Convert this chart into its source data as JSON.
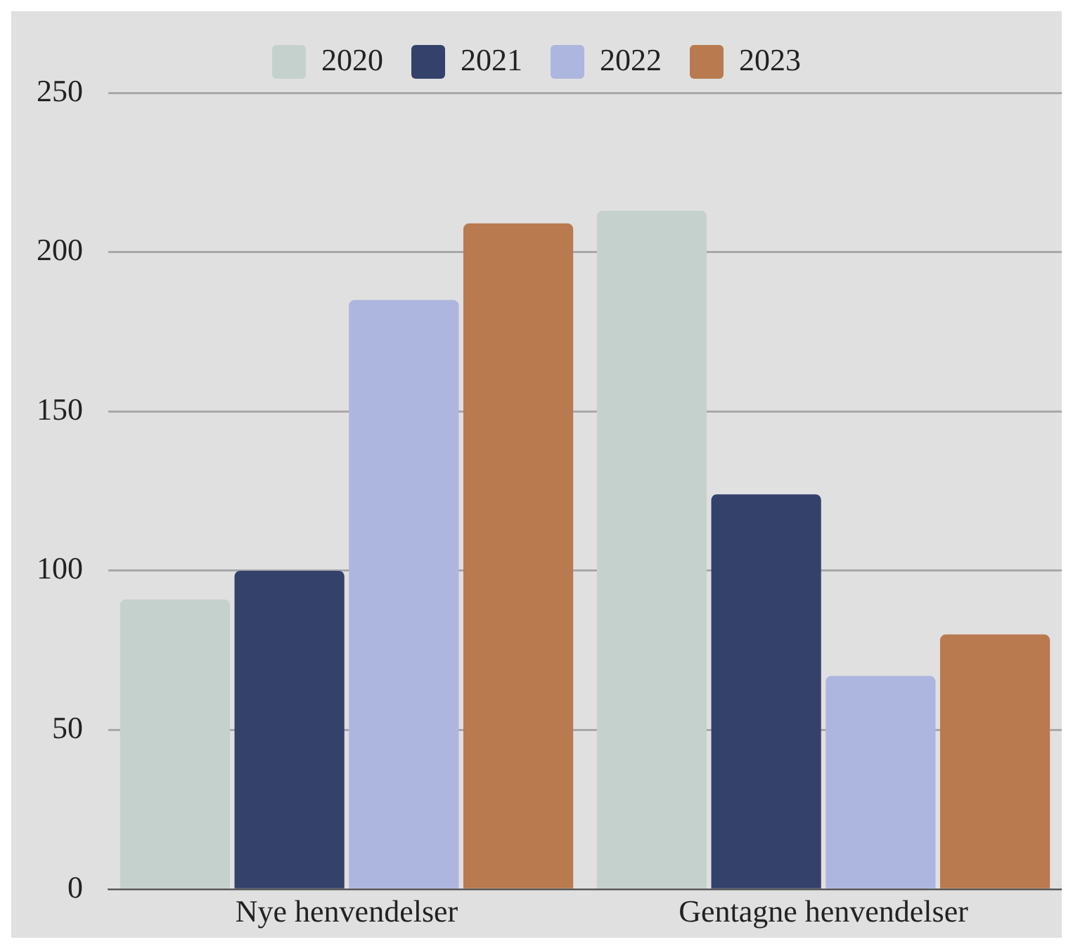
{
  "chart_data": {
    "type": "bar",
    "categories": [
      "Nye henvendelser",
      "Gentagne henvendelser"
    ],
    "series": [
      {
        "name": "2020",
        "color": "#c5d1cc",
        "values": [
          91,
          213
        ]
      },
      {
        "name": "2021",
        "color": "#33416b",
        "values": [
          100,
          124
        ]
      },
      {
        "name": "2022",
        "color": "#adb6de",
        "values": [
          185,
          67
        ]
      },
      {
        "name": "2023",
        "color": "#b97a50",
        "values": [
          209,
          80
        ]
      }
    ],
    "ylim": [
      0,
      250
    ],
    "yticks": [
      0,
      50,
      100,
      150,
      200,
      250
    ],
    "grid": "y",
    "legend": "top"
  }
}
